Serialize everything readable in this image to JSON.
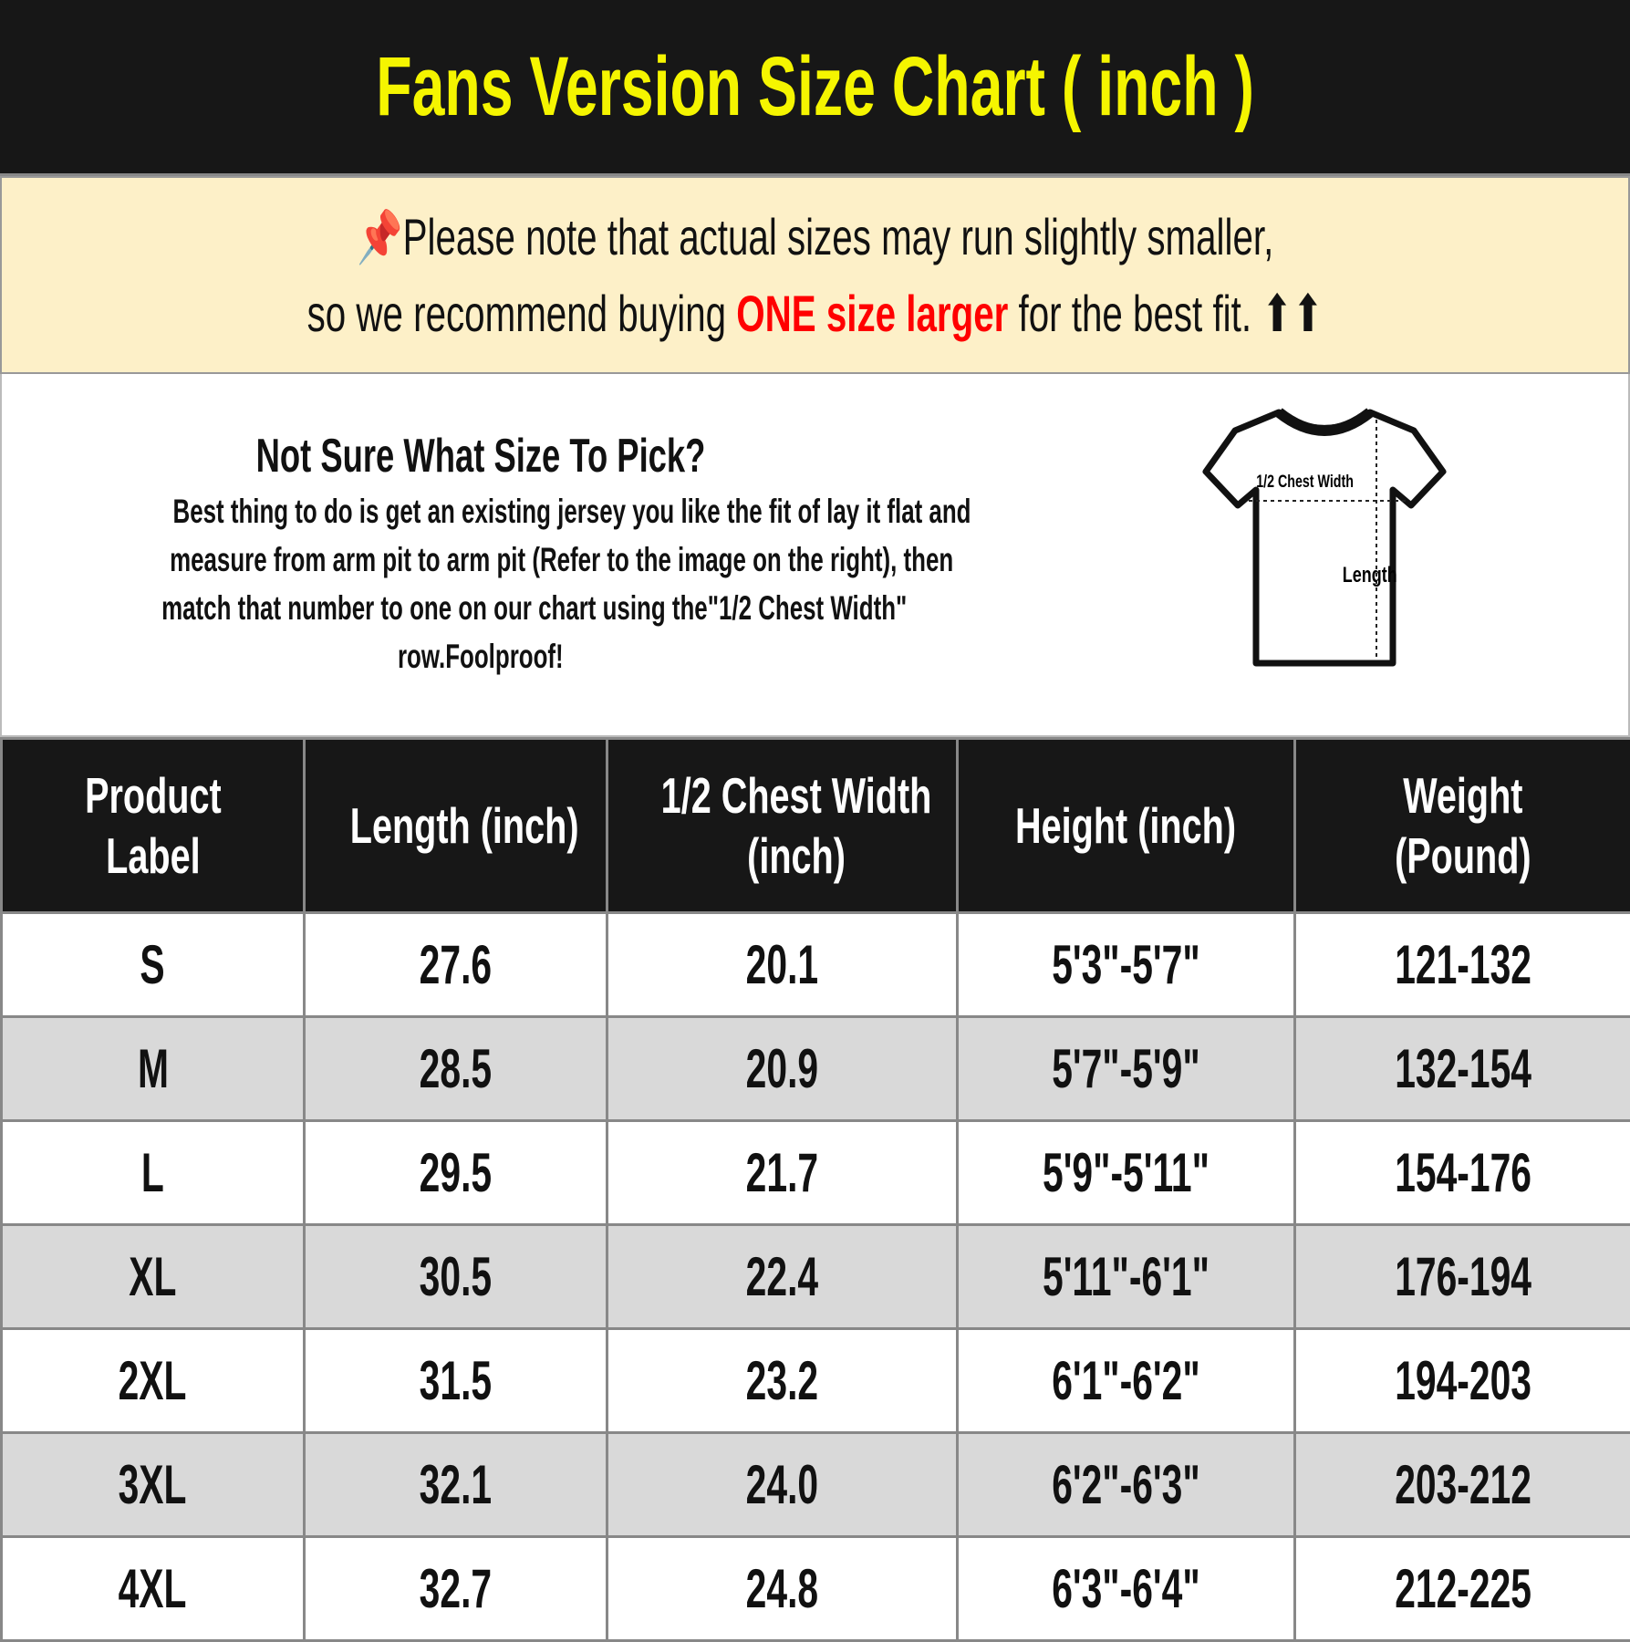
{
  "title": "Fans Version Size Chart ( inch )",
  "note": {
    "icon": "pushpin-icon",
    "line1": "Please note that actual sizes may run slightly smaller,",
    "line2_pre": "so we recommend buying ",
    "line2_highlight": "ONE size larger",
    "line2_post": " for the best fit.",
    "arrows": "⬆⬆",
    "highlight_color": "#ff0000"
  },
  "help": {
    "heading": "Not Sure What Size To Pick?",
    "lines": [
      "Best thing to do is get an existing jersey you like the fit of lay it flat and",
      "measure from arm pit to arm pit (Refer to the image on the right), then",
      "match that number to one on our chart using the\"1/2 Chest Width\"",
      "row.Foolproof!"
    ]
  },
  "diagram": {
    "chest_label": "1/2 Chest Width",
    "length_label": "Length"
  },
  "table": {
    "headers": [
      [
        "Product",
        "Label"
      ],
      [
        "Length (inch)"
      ],
      [
        "1/2 Chest Width",
        "(inch)"
      ],
      [
        "Height (inch)"
      ],
      [
        "Weight",
        "(Pound)"
      ]
    ],
    "rows": [
      [
        "S",
        "27.6",
        "20.1",
        "5'3\"-5'7\"",
        "121-132"
      ],
      [
        "M",
        "28.5",
        "20.9",
        "5'7\"-5'9\"",
        "132-154"
      ],
      [
        "L",
        "29.5",
        "21.7",
        "5'9\"-5'11\"",
        "154-176"
      ],
      [
        "XL",
        "30.5",
        "22.4",
        "5'11\"-6'1\"",
        "176-194"
      ],
      [
        "2XL",
        "31.5",
        "23.2",
        "6'1\"-6'2\"",
        "194-203"
      ],
      [
        "3XL",
        "32.1",
        "24.0",
        "6'2\"-6'3\"",
        "203-212"
      ],
      [
        "4XL",
        "32.7",
        "24.8",
        "6'3\"-6'4\"",
        "212-225"
      ]
    ]
  }
}
